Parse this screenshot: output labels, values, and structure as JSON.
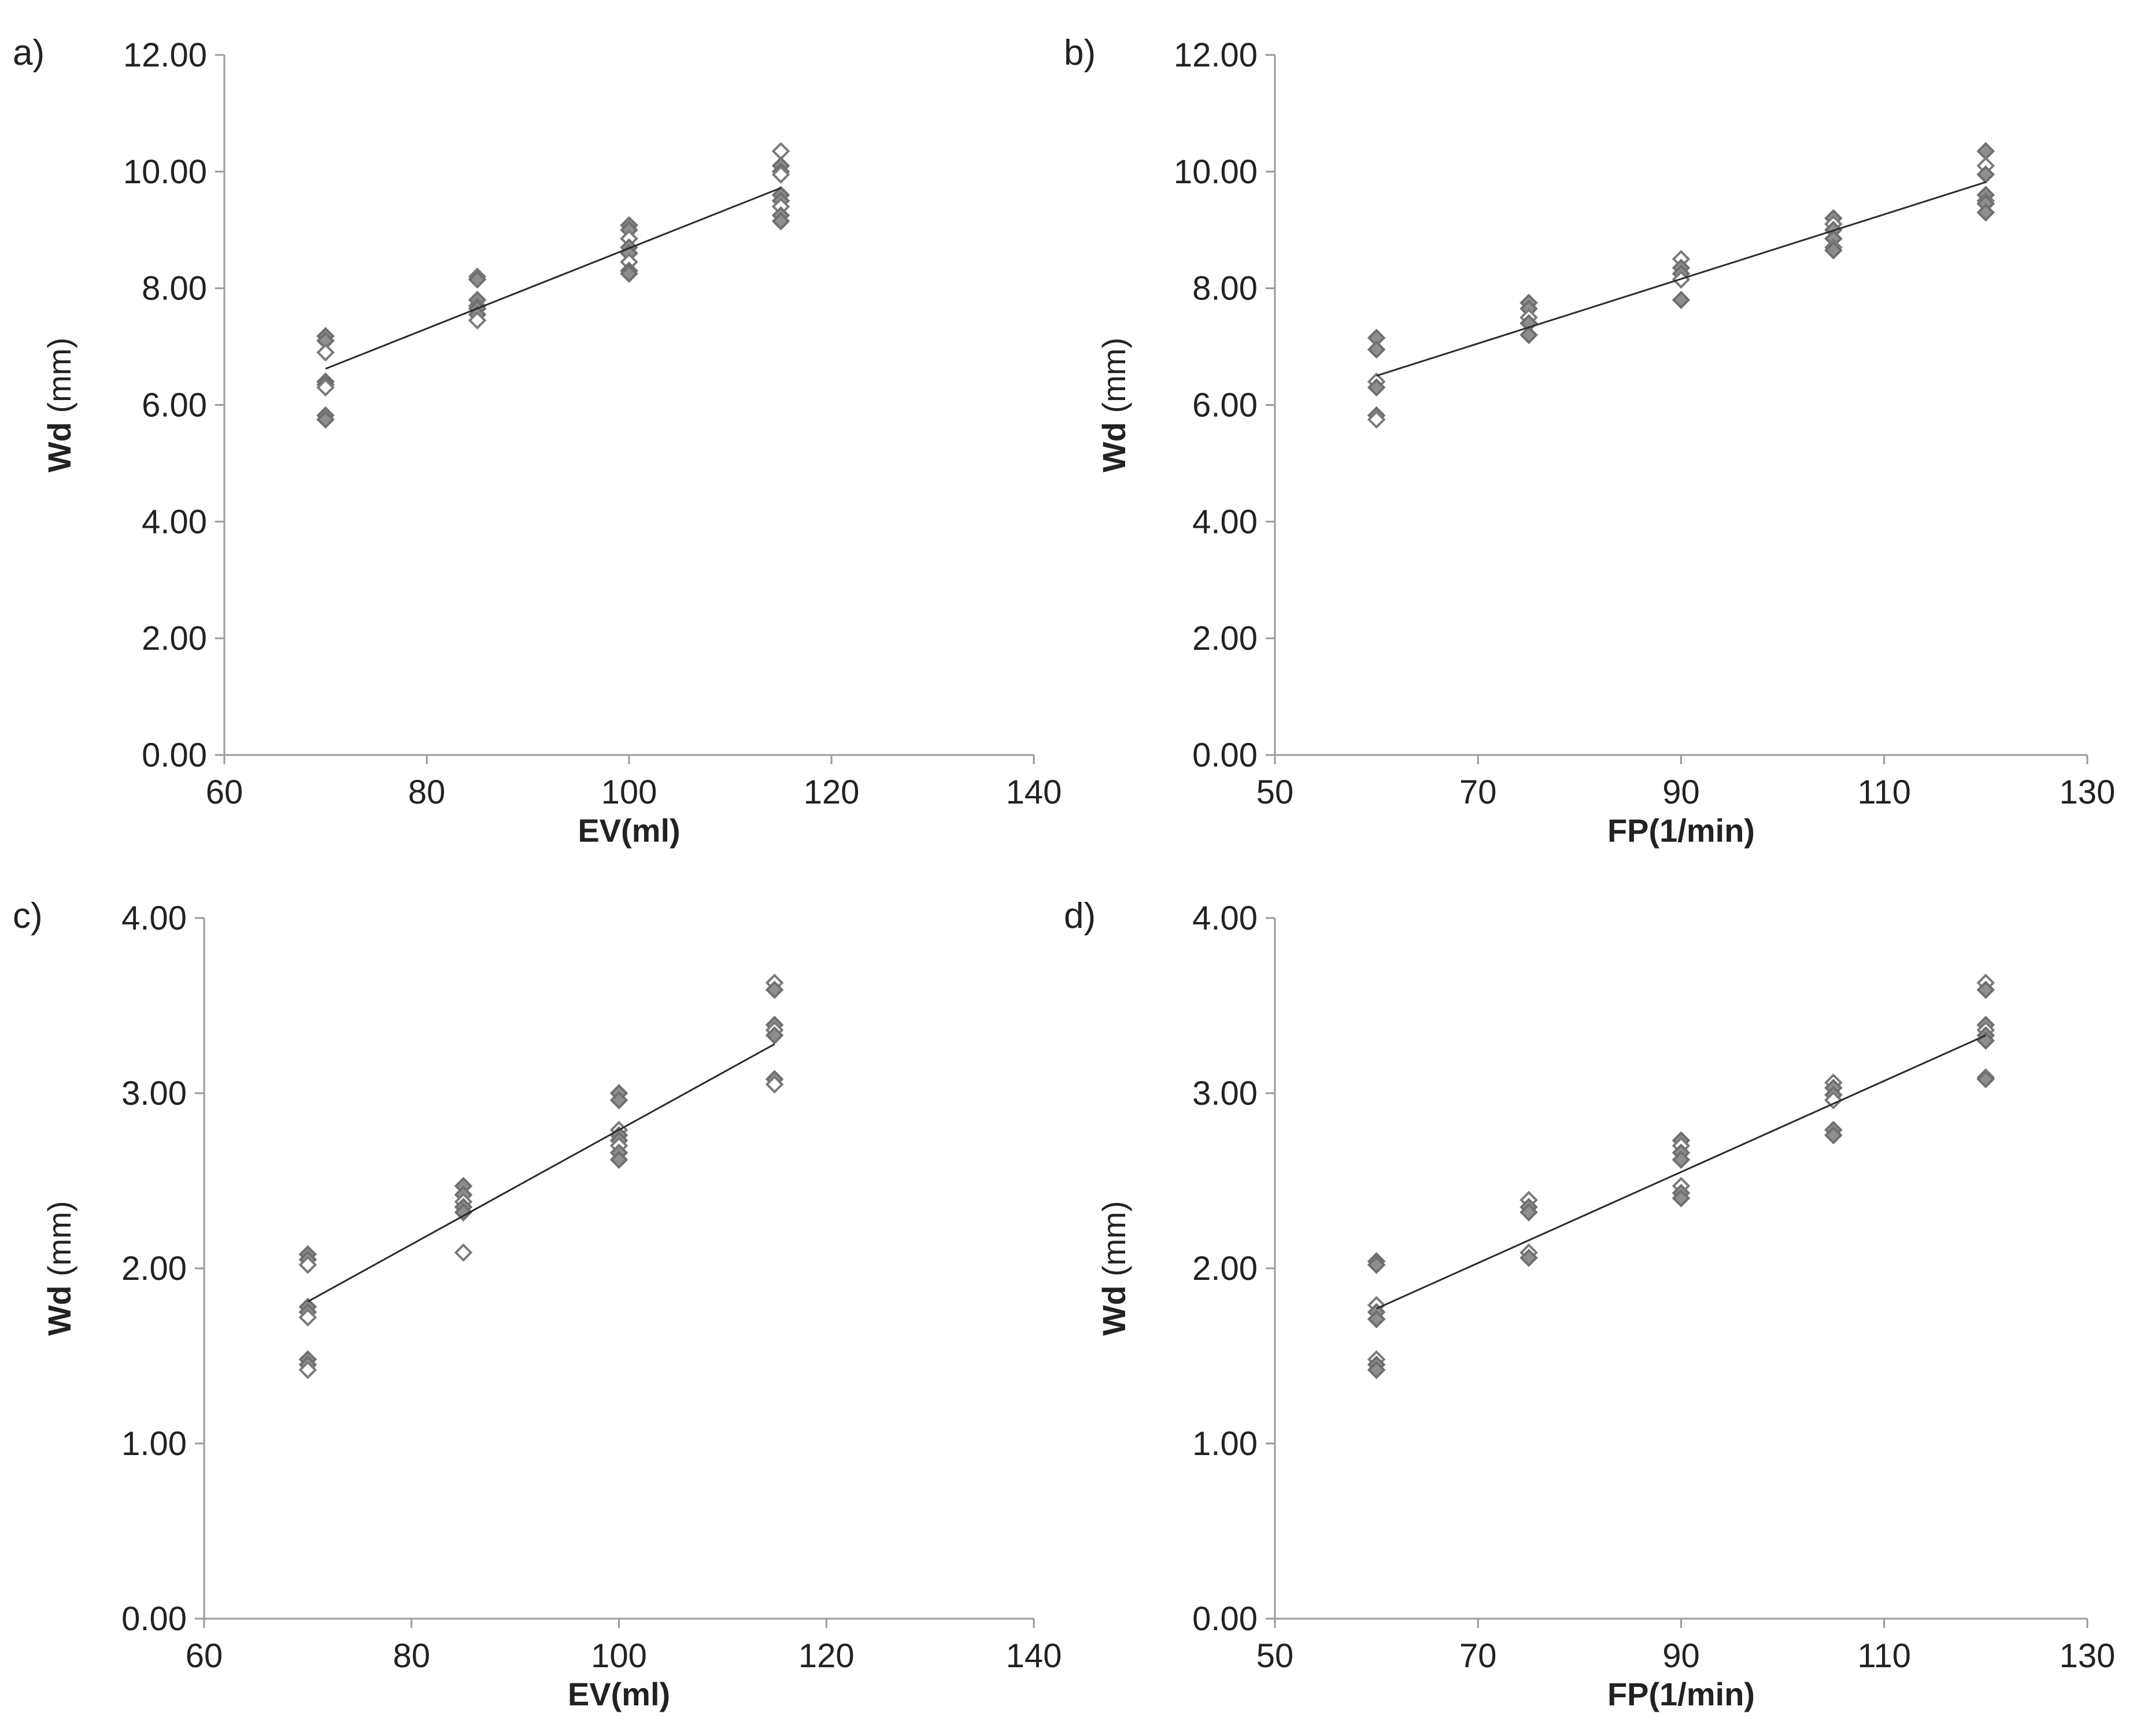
{
  "chart_data": [
    {
      "id": "a",
      "type": "scatter",
      "panel_label": "a)",
      "xlabel": "EV(ml)",
      "ylabel": "Wd",
      "ylabel_unit": "(mm)",
      "xlim": [
        60,
        140
      ],
      "ylim": [
        0,
        12
      ],
      "x_ticks": [
        "60",
        "80",
        "100",
        "120",
        "140"
      ],
      "y_ticks": [
        "0.00",
        "2.00",
        "4.00",
        "6.00",
        "8.00",
        "10.00",
        "12.00"
      ],
      "points": [
        {
          "x": 70,
          "y": 7.18
        },
        {
          "x": 70,
          "y": 7.1
        },
        {
          "x": 70,
          "y": 6.9
        },
        {
          "x": 70,
          "y": 6.4
        },
        {
          "x": 70,
          "y": 6.35
        },
        {
          "x": 70,
          "y": 6.3
        },
        {
          "x": 70,
          "y": 5.82
        },
        {
          "x": 70,
          "y": 5.75
        },
        {
          "x": 85,
          "y": 8.2
        },
        {
          "x": 85,
          "y": 8.15
        },
        {
          "x": 85,
          "y": 7.8
        },
        {
          "x": 85,
          "y": 7.7
        },
        {
          "x": 85,
          "y": 7.65
        },
        {
          "x": 85,
          "y": 7.55
        },
        {
          "x": 85,
          "y": 7.45
        },
        {
          "x": 100,
          "y": 9.08
        },
        {
          "x": 100,
          "y": 9.0
        },
        {
          "x": 100,
          "y": 8.85
        },
        {
          "x": 100,
          "y": 8.7
        },
        {
          "x": 100,
          "y": 8.6
        },
        {
          "x": 100,
          "y": 8.45
        },
        {
          "x": 100,
          "y": 8.3
        },
        {
          "x": 100,
          "y": 8.25
        },
        {
          "x": 115,
          "y": 10.35
        },
        {
          "x": 115,
          "y": 10.1
        },
        {
          "x": 115,
          "y": 10.0
        },
        {
          "x": 115,
          "y": 9.95
        },
        {
          "x": 115,
          "y": 9.6
        },
        {
          "x": 115,
          "y": 9.5
        },
        {
          "x": 115,
          "y": 9.4
        },
        {
          "x": 115,
          "y": 9.25
        },
        {
          "x": 115,
          "y": 9.15
        }
      ],
      "trendline": {
        "x": [
          70,
          115
        ],
        "y": [
          6.62,
          9.72
        ]
      }
    },
    {
      "id": "b",
      "type": "scatter",
      "panel_label": "b)",
      "xlabel": "FP(1/min)",
      "ylabel": "Wd",
      "ylabel_unit": "(mm)",
      "xlim": [
        50,
        130
      ],
      "ylim": [
        0,
        12
      ],
      "x_ticks": [
        "50",
        "70",
        "90",
        "110",
        "130"
      ],
      "y_ticks": [
        "0.00",
        "2.00",
        "4.00",
        "6.00",
        "8.00",
        "10.00",
        "12.00"
      ],
      "points": [
        {
          "x": 60,
          "y": 7.15
        },
        {
          "x": 60,
          "y": 6.95
        },
        {
          "x": 60,
          "y": 6.4
        },
        {
          "x": 60,
          "y": 6.3
        },
        {
          "x": 60,
          "y": 5.82
        },
        {
          "x": 60,
          "y": 5.75
        },
        {
          "x": 75,
          "y": 7.75
        },
        {
          "x": 75,
          "y": 7.65
        },
        {
          "x": 75,
          "y": 7.5
        },
        {
          "x": 75,
          "y": 7.4
        },
        {
          "x": 75,
          "y": 7.2
        },
        {
          "x": 90,
          "y": 8.5
        },
        {
          "x": 90,
          "y": 8.35
        },
        {
          "x": 90,
          "y": 8.25
        },
        {
          "x": 90,
          "y": 8.15
        },
        {
          "x": 90,
          "y": 7.8
        },
        {
          "x": 105,
          "y": 9.2
        },
        {
          "x": 105,
          "y": 9.1
        },
        {
          "x": 105,
          "y": 9.0
        },
        {
          "x": 105,
          "y": 8.85
        },
        {
          "x": 105,
          "y": 8.7
        },
        {
          "x": 105,
          "y": 8.65
        },
        {
          "x": 120,
          "y": 10.35
        },
        {
          "x": 120,
          "y": 10.1
        },
        {
          "x": 120,
          "y": 9.95
        },
        {
          "x": 120,
          "y": 9.6
        },
        {
          "x": 120,
          "y": 9.5
        },
        {
          "x": 120,
          "y": 9.45
        },
        {
          "x": 120,
          "y": 9.3
        }
      ],
      "trendline": {
        "x": [
          60,
          120
        ],
        "y": [
          6.5,
          9.82
        ]
      }
    },
    {
      "id": "c",
      "type": "scatter",
      "panel_label": "c)",
      "xlabel": "EV(ml)",
      "ylabel": "Wd",
      "ylabel_unit": "(mm)",
      "xlim": [
        60,
        140
      ],
      "ylim": [
        0,
        4
      ],
      "x_ticks": [
        "60",
        "80",
        "100",
        "120",
        "140"
      ],
      "y_ticks": [
        "0.00",
        "1.00",
        "2.00",
        "3.00",
        "4.00"
      ],
      "points": [
        {
          "x": 70,
          "y": 2.08
        },
        {
          "x": 70,
          "y": 2.05
        },
        {
          "x": 70,
          "y": 2.02
        },
        {
          "x": 70,
          "y": 1.78
        },
        {
          "x": 70,
          "y": 1.75
        },
        {
          "x": 70,
          "y": 1.72
        },
        {
          "x": 70,
          "y": 1.48
        },
        {
          "x": 70,
          "y": 1.45
        },
        {
          "x": 70,
          "y": 1.42
        },
        {
          "x": 85,
          "y": 2.47
        },
        {
          "x": 85,
          "y": 2.42
        },
        {
          "x": 85,
          "y": 2.38
        },
        {
          "x": 85,
          "y": 2.35
        },
        {
          "x": 85,
          "y": 2.32
        },
        {
          "x": 85,
          "y": 2.09
        },
        {
          "x": 100,
          "y": 3.0
        },
        {
          "x": 100,
          "y": 2.96
        },
        {
          "x": 100,
          "y": 2.79
        },
        {
          "x": 100,
          "y": 2.76
        },
        {
          "x": 100,
          "y": 2.73
        },
        {
          "x": 100,
          "y": 2.7
        },
        {
          "x": 100,
          "y": 2.66
        },
        {
          "x": 100,
          "y": 2.62
        },
        {
          "x": 115,
          "y": 3.63
        },
        {
          "x": 115,
          "y": 3.59
        },
        {
          "x": 115,
          "y": 3.39
        },
        {
          "x": 115,
          "y": 3.36
        },
        {
          "x": 115,
          "y": 3.33
        },
        {
          "x": 115,
          "y": 3.08
        },
        {
          "x": 115,
          "y": 3.05
        }
      ],
      "trendline": {
        "x": [
          70,
          115
        ],
        "y": [
          1.81,
          3.28
        ]
      }
    },
    {
      "id": "d",
      "type": "scatter",
      "panel_label": "d)",
      "xlabel": "FP(1/min)",
      "ylabel": "Wd",
      "ylabel_unit": "(mm)",
      "xlim": [
        50,
        130
      ],
      "ylim": [
        0,
        4
      ],
      "x_ticks": [
        "50",
        "70",
        "90",
        "110",
        "130"
      ],
      "y_ticks": [
        "0.00",
        "1.00",
        "2.00",
        "3.00",
        "4.00"
      ],
      "points": [
        {
          "x": 60,
          "y": 2.04
        },
        {
          "x": 60,
          "y": 2.02
        },
        {
          "x": 60,
          "y": 1.79
        },
        {
          "x": 60,
          "y": 1.75
        },
        {
          "x": 60,
          "y": 1.71
        },
        {
          "x": 60,
          "y": 1.48
        },
        {
          "x": 60,
          "y": 1.45
        },
        {
          "x": 60,
          "y": 1.42
        },
        {
          "x": 75,
          "y": 2.39
        },
        {
          "x": 75,
          "y": 2.35
        },
        {
          "x": 75,
          "y": 2.32
        },
        {
          "x": 75,
          "y": 2.09
        },
        {
          "x": 75,
          "y": 2.06
        },
        {
          "x": 90,
          "y": 2.73
        },
        {
          "x": 90,
          "y": 2.7
        },
        {
          "x": 90,
          "y": 2.66
        },
        {
          "x": 90,
          "y": 2.62
        },
        {
          "x": 90,
          "y": 2.47
        },
        {
          "x": 90,
          "y": 2.43
        },
        {
          "x": 90,
          "y": 2.4
        },
        {
          "x": 105,
          "y": 3.06
        },
        {
          "x": 105,
          "y": 3.03
        },
        {
          "x": 105,
          "y": 2.99
        },
        {
          "x": 105,
          "y": 2.96
        },
        {
          "x": 105,
          "y": 2.79
        },
        {
          "x": 105,
          "y": 2.76
        },
        {
          "x": 120,
          "y": 3.63
        },
        {
          "x": 120,
          "y": 3.59
        },
        {
          "x": 120,
          "y": 3.39
        },
        {
          "x": 120,
          "y": 3.36
        },
        {
          "x": 120,
          "y": 3.33
        },
        {
          "x": 120,
          "y": 3.3
        },
        {
          "x": 120,
          "y": 3.09
        },
        {
          "x": 120,
          "y": 3.08
        }
      ],
      "trendline": {
        "x": [
          60,
          120
        ],
        "y": [
          1.77,
          3.33
        ]
      }
    }
  ]
}
